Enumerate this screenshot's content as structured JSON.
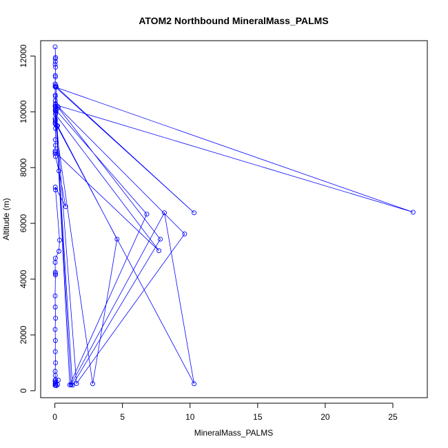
{
  "chart_data": {
    "type": "line",
    "title": "ATOM2 Northbound MineralMass_PALMS",
    "xlabel": "MineralMass_PALMS",
    "ylabel": "Altitude (m)",
    "xlim": [
      -1.05,
      27.55
    ],
    "ylim": [
      -250,
      12550
    ],
    "xticks": [
      0,
      5,
      10,
      15,
      20,
      25
    ],
    "yticks": [
      0,
      2000,
      4000,
      6000,
      8000,
      10000,
      12000
    ],
    "grid": false,
    "legend": "none",
    "color": "#0000ff",
    "series": [
      {
        "x": [
          0.02,
          0.05,
          0.03,
          0.04,
          0.02,
          0.05,
          0.03,
          0.04,
          0.02,
          0.05,
          0.02,
          0.03,
          0.04,
          0.03,
          0.05,
          0.02,
          0.04,
          0.03,
          0.05,
          0.02,
          0.04,
          0.03,
          0.02,
          0.05,
          0.03,
          0.04,
          0.02,
          0.1,
          10.3,
          0.06,
          26.5,
          0.04,
          0.2,
          9.6,
          1.6,
          0.05,
          0.25,
          7.8,
          1.3,
          0.04,
          0.1,
          6.8,
          1.1,
          0.06,
          0.2,
          4.6,
          2.8,
          0.04,
          0.15,
          10.3,
          8.1,
          1.2,
          0.05,
          7.7,
          0.03,
          0.02,
          0.04,
          0.3,
          0.8,
          0.03,
          0.05,
          0.35,
          0.3,
          0.04,
          0.02,
          0.03,
          0.05,
          0.04,
          0.02,
          0.03,
          0.05,
          0.02,
          0.04,
          0.03,
          0.05,
          0.02,
          0.03,
          0.04,
          0.02,
          0.05,
          0.03,
          0.04,
          0.02,
          0.1,
          0.2,
          0.05,
          0.03,
          0.25,
          0.03
        ],
        "y": [
          12330,
          11950,
          11900,
          11800,
          11700,
          11600,
          11300,
          11250,
          11000,
          10950,
          10900,
          10600,
          10550,
          10400,
          10300,
          10200,
          10100,
          10050,
          10000,
          9750,
          9700,
          9650,
          9600,
          9400,
          9000,
          8800,
          8600,
          10900,
          6380,
          10880,
          6400,
          10250,
          10200,
          5620,
          260,
          10180,
          10150,
          5430,
          200,
          10100,
          10050,
          6330,
          210,
          9950,
          9500,
          5430,
          250,
          9550,
          9500,
          250,
          6380,
          220,
          9900,
          5020,
          8550,
          8500,
          8400,
          7880,
          6600,
          7300,
          7200,
          5400,
          5000,
          4750,
          4600,
          4250,
          4200,
          4150,
          3400,
          3000,
          2600,
          2200,
          1800,
          1400,
          1000,
          700,
          550,
          400,
          350,
          300,
          250,
          200,
          190,
          180,
          220,
          260,
          300,
          380,
          250
        ]
      }
    ]
  }
}
